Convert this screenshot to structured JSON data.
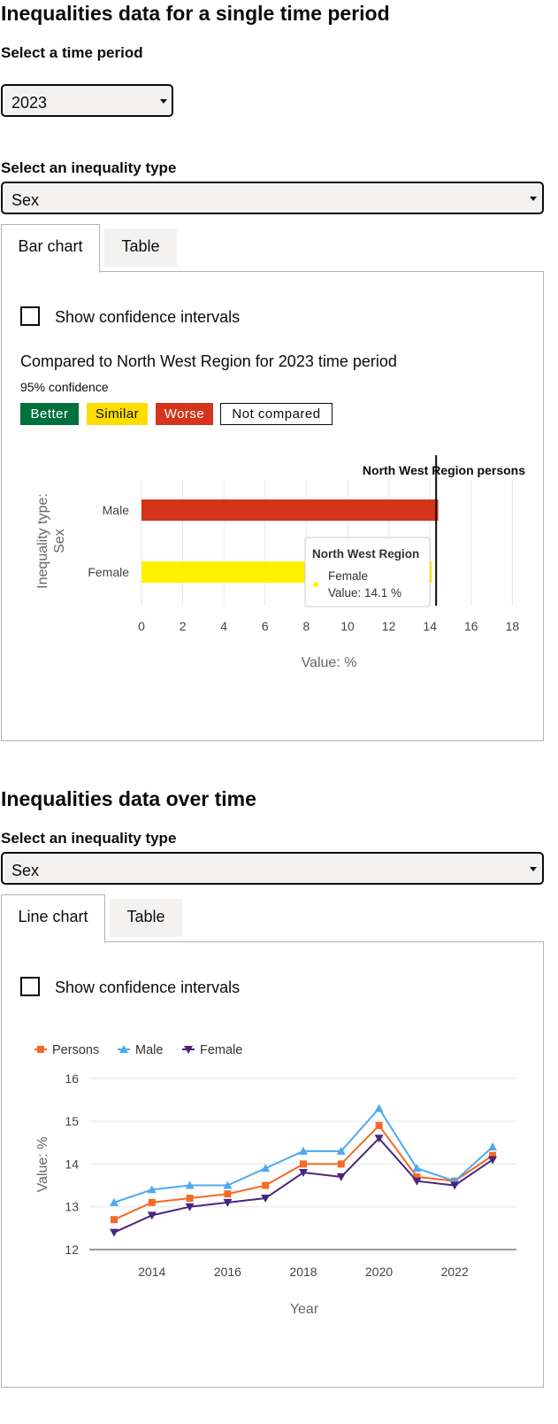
{
  "section1": {
    "heading": "Inequalities data for a single time period",
    "time_label": "Select a time period",
    "time_value": "2023",
    "ineq_label": "Select an inequality type",
    "ineq_value": "Sex",
    "tabs": [
      {
        "label": "Bar chart"
      },
      {
        "label": "Table"
      }
    ],
    "ci_label": "Show confidence intervals",
    "compare_title": "Compared to North West Region for 2023 time period",
    "confidence": "95% confidence",
    "legend": {
      "better": "Better",
      "similar": "Similar",
      "worse": "Worse",
      "not_compared": "Not compared"
    },
    "colors": {
      "better": "#00703c",
      "similar": "#ffdd00",
      "worse": "#d4351c",
      "benchmark": "#0b0c0c"
    }
  },
  "section2": {
    "heading": "Inequalities data over time",
    "ineq_label": "Select an inequality type",
    "ineq_value": "Sex",
    "tabs": [
      {
        "label": "Line chart"
      },
      {
        "label": "Table"
      }
    ],
    "ci_label": "Show confidence intervals"
  },
  "chart_data": [
    {
      "type": "bar",
      "orientation": "horizontal",
      "categories": [
        "Male",
        "Female"
      ],
      "values": [
        14.4,
        14.1
      ],
      "bar_colors": [
        "#d4351c",
        "#fff200"
      ],
      "ylabel": "Inequality type: Sex",
      "xlabel": "Value: %",
      "xlim": [
        0,
        18
      ],
      "xticks": [
        0,
        2,
        4,
        6,
        8,
        10,
        12,
        14,
        16,
        18
      ],
      "benchmark": {
        "label": "North West Region persons",
        "value": 14.3
      },
      "tooltip": {
        "title": "North West Region",
        "series": "Female",
        "value_text": "Value: 14.1 %"
      },
      "grid": true
    },
    {
      "type": "line",
      "x": [
        2013,
        2014,
        2015,
        2016,
        2017,
        2018,
        2019,
        2020,
        2021,
        2022,
        2023
      ],
      "series": [
        {
          "name": "Persons",
          "color": "#f46a25",
          "marker": "square",
          "values": [
            12.7,
            13.1,
            13.2,
            13.3,
            13.5,
            14.0,
            14.0,
            14.9,
            13.7,
            13.6,
            14.2
          ]
        },
        {
          "name": "Male",
          "color": "#4fa9ef",
          "marker": "triangle",
          "values": [
            13.1,
            13.4,
            13.5,
            13.5,
            13.9,
            14.3,
            14.3,
            15.3,
            13.9,
            13.6,
            14.4
          ]
        },
        {
          "name": "Female",
          "color": "#4a2580",
          "marker": "triangle-down",
          "values": [
            12.4,
            12.8,
            13.0,
            13.1,
            13.2,
            13.8,
            13.7,
            14.6,
            13.6,
            13.5,
            14.1
          ]
        }
      ],
      "xlabel": "Year",
      "ylabel": "Value: %",
      "ylim": [
        12,
        16
      ],
      "yticks": [
        12,
        13,
        14,
        15,
        16
      ],
      "xticks": [
        2014,
        2016,
        2018,
        2020,
        2022
      ],
      "legend_position": "top-left",
      "grid": true
    }
  ]
}
